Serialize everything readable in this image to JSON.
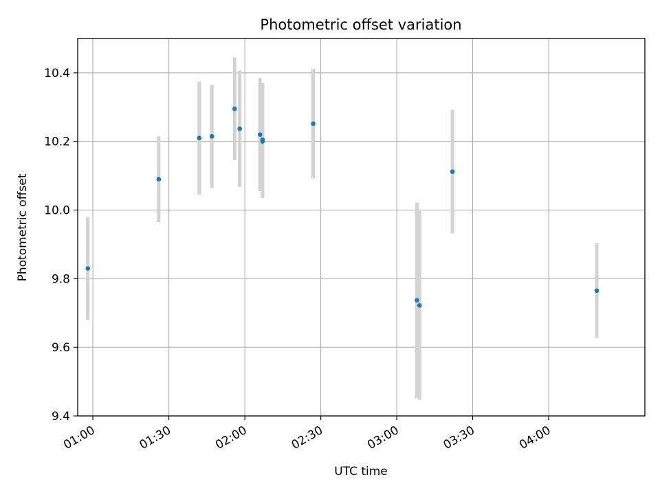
{
  "chart_data": {
    "type": "scatter",
    "title": "Photometric offset variation",
    "xlabel": "UTC time",
    "ylabel": "Photometric offset",
    "x_ticks": [
      "01:00",
      "01:30",
      "02:00",
      "02:30",
      "03:00",
      "03:30",
      "04:00"
    ],
    "x_range": [
      "00:54",
      "04:38"
    ],
    "y_ticks": [
      "9.4",
      "9.6",
      "9.8",
      "10.0",
      "10.2",
      "10.4"
    ],
    "ylim": [
      9.4,
      10.5
    ],
    "grid": true,
    "colors": {
      "point": "#1f77b4",
      "errorbar": "#d3d3d3",
      "grid": "#b0b0b0"
    },
    "points": [
      {
        "x": "00:58",
        "y": 9.83,
        "yerr": 0.15
      },
      {
        "x": "01:26",
        "y": 10.09,
        "yerr": 0.125
      },
      {
        "x": "01:42",
        "y": 10.21,
        "yerr": 0.165
      },
      {
        "x": "01:47",
        "y": 10.215,
        "yerr": 0.15
      },
      {
        "x": "01:56",
        "y": 10.295,
        "yerr": 0.15
      },
      {
        "x": "01:58",
        "y": 10.237,
        "yerr": 0.17
      },
      {
        "x": "02:06",
        "y": 10.22,
        "yerr": 0.165
      },
      {
        "x": "02:07",
        "y": 10.205,
        "yerr": 0.165
      },
      {
        "x": "02:07",
        "y": 10.2,
        "yerr": 0.165
      },
      {
        "x": "02:27",
        "y": 10.252,
        "yerr": 0.16
      },
      {
        "x": "03:08",
        "y": 9.737,
        "yerr": 0.285
      },
      {
        "x": "03:09",
        "y": 9.722,
        "yerr": 0.275
      },
      {
        "x": "03:22",
        "y": 10.112,
        "yerr": 0.18
      },
      {
        "x": "04:19",
        "y": 9.765,
        "yerr": 0.138
      }
    ]
  }
}
